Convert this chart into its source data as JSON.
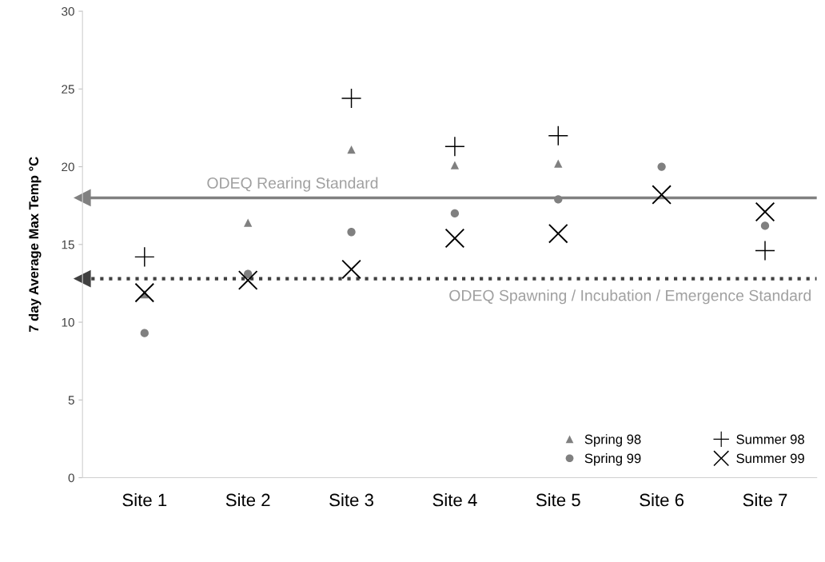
{
  "chart_data": {
    "type": "scatter",
    "ylabel": "7 day Average Max Temp °C",
    "categories": [
      "Site 1",
      "Site 2",
      "Site 3",
      "Site 4",
      "Site 5",
      "Site 6",
      "Site 7"
    ],
    "series": [
      {
        "name": "Spring 98",
        "color": "#808080",
        "marker": "triangle",
        "values": [
          11.8,
          16.4,
          21.1,
          20.1,
          20.2,
          null,
          null
        ]
      },
      {
        "name": "Spring 99",
        "color": "#808080",
        "marker": "circle",
        "values": [
          9.3,
          13.1,
          15.8,
          17.0,
          17.9,
          20.0,
          16.2
        ]
      },
      {
        "name": "Summer 98",
        "color": "#000000",
        "marker": "plus",
        "values": [
          14.2,
          null,
          24.4,
          21.3,
          22.0,
          null,
          14.6
        ]
      },
      {
        "name": "Summer 99",
        "color": "#000000",
        "marker": "cross",
        "values": [
          11.9,
          12.7,
          13.4,
          15.4,
          15.7,
          18.2,
          17.1
        ]
      }
    ],
    "ref_lines": [
      {
        "axis": "y",
        "value": 18,
        "label": "ODEQ Rearing Standard",
        "color": "#808080",
        "line_style": "solid"
      },
      {
        "axis": "y",
        "value": 12.8,
        "label": "ODEQ Spawning / Incubation / Emergence Standard",
        "color": "#404040",
        "line_style": "dotted"
      }
    ],
    "ylim": [
      0,
      30
    ],
    "yticks": [
      0,
      5,
      10,
      15,
      20,
      25,
      30
    ],
    "grid": false,
    "legend": "bottom right"
  }
}
